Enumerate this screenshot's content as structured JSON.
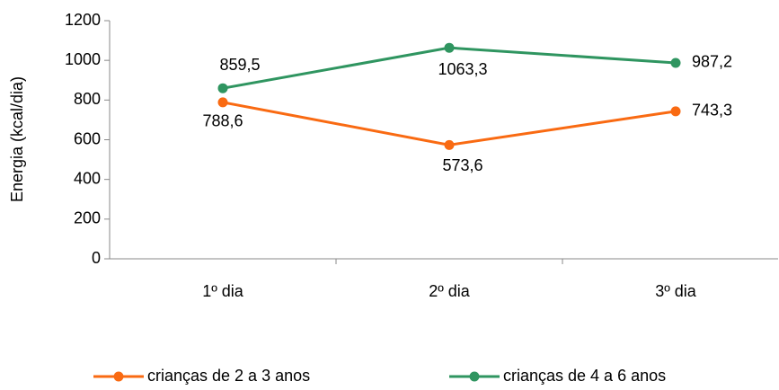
{
  "chart_data": {
    "type": "line",
    "y_label": "Energia (kcal/dia)",
    "categories": [
      "1º dia",
      "2º dia",
      "3º dia"
    ],
    "series": [
      {
        "name": "crianças de 2 a 3 anos",
        "color": "#f96a12",
        "values": [
          788.6,
          573.6,
          743.3
        ],
        "value_labels": [
          "788,6",
          "573,6",
          "743,3"
        ]
      },
      {
        "name": "crianças de 4 a 6 anos",
        "color": "#2f9560",
        "values": [
          859.5,
          1063.3,
          987.2
        ],
        "value_labels": [
          "859,5",
          "1063,3",
          "987,2"
        ]
      }
    ],
    "ylim": [
      0,
      1200
    ],
    "yticks": [
      0,
      200,
      400,
      600,
      800,
      1000,
      1200
    ],
    "legend": "bottom"
  }
}
